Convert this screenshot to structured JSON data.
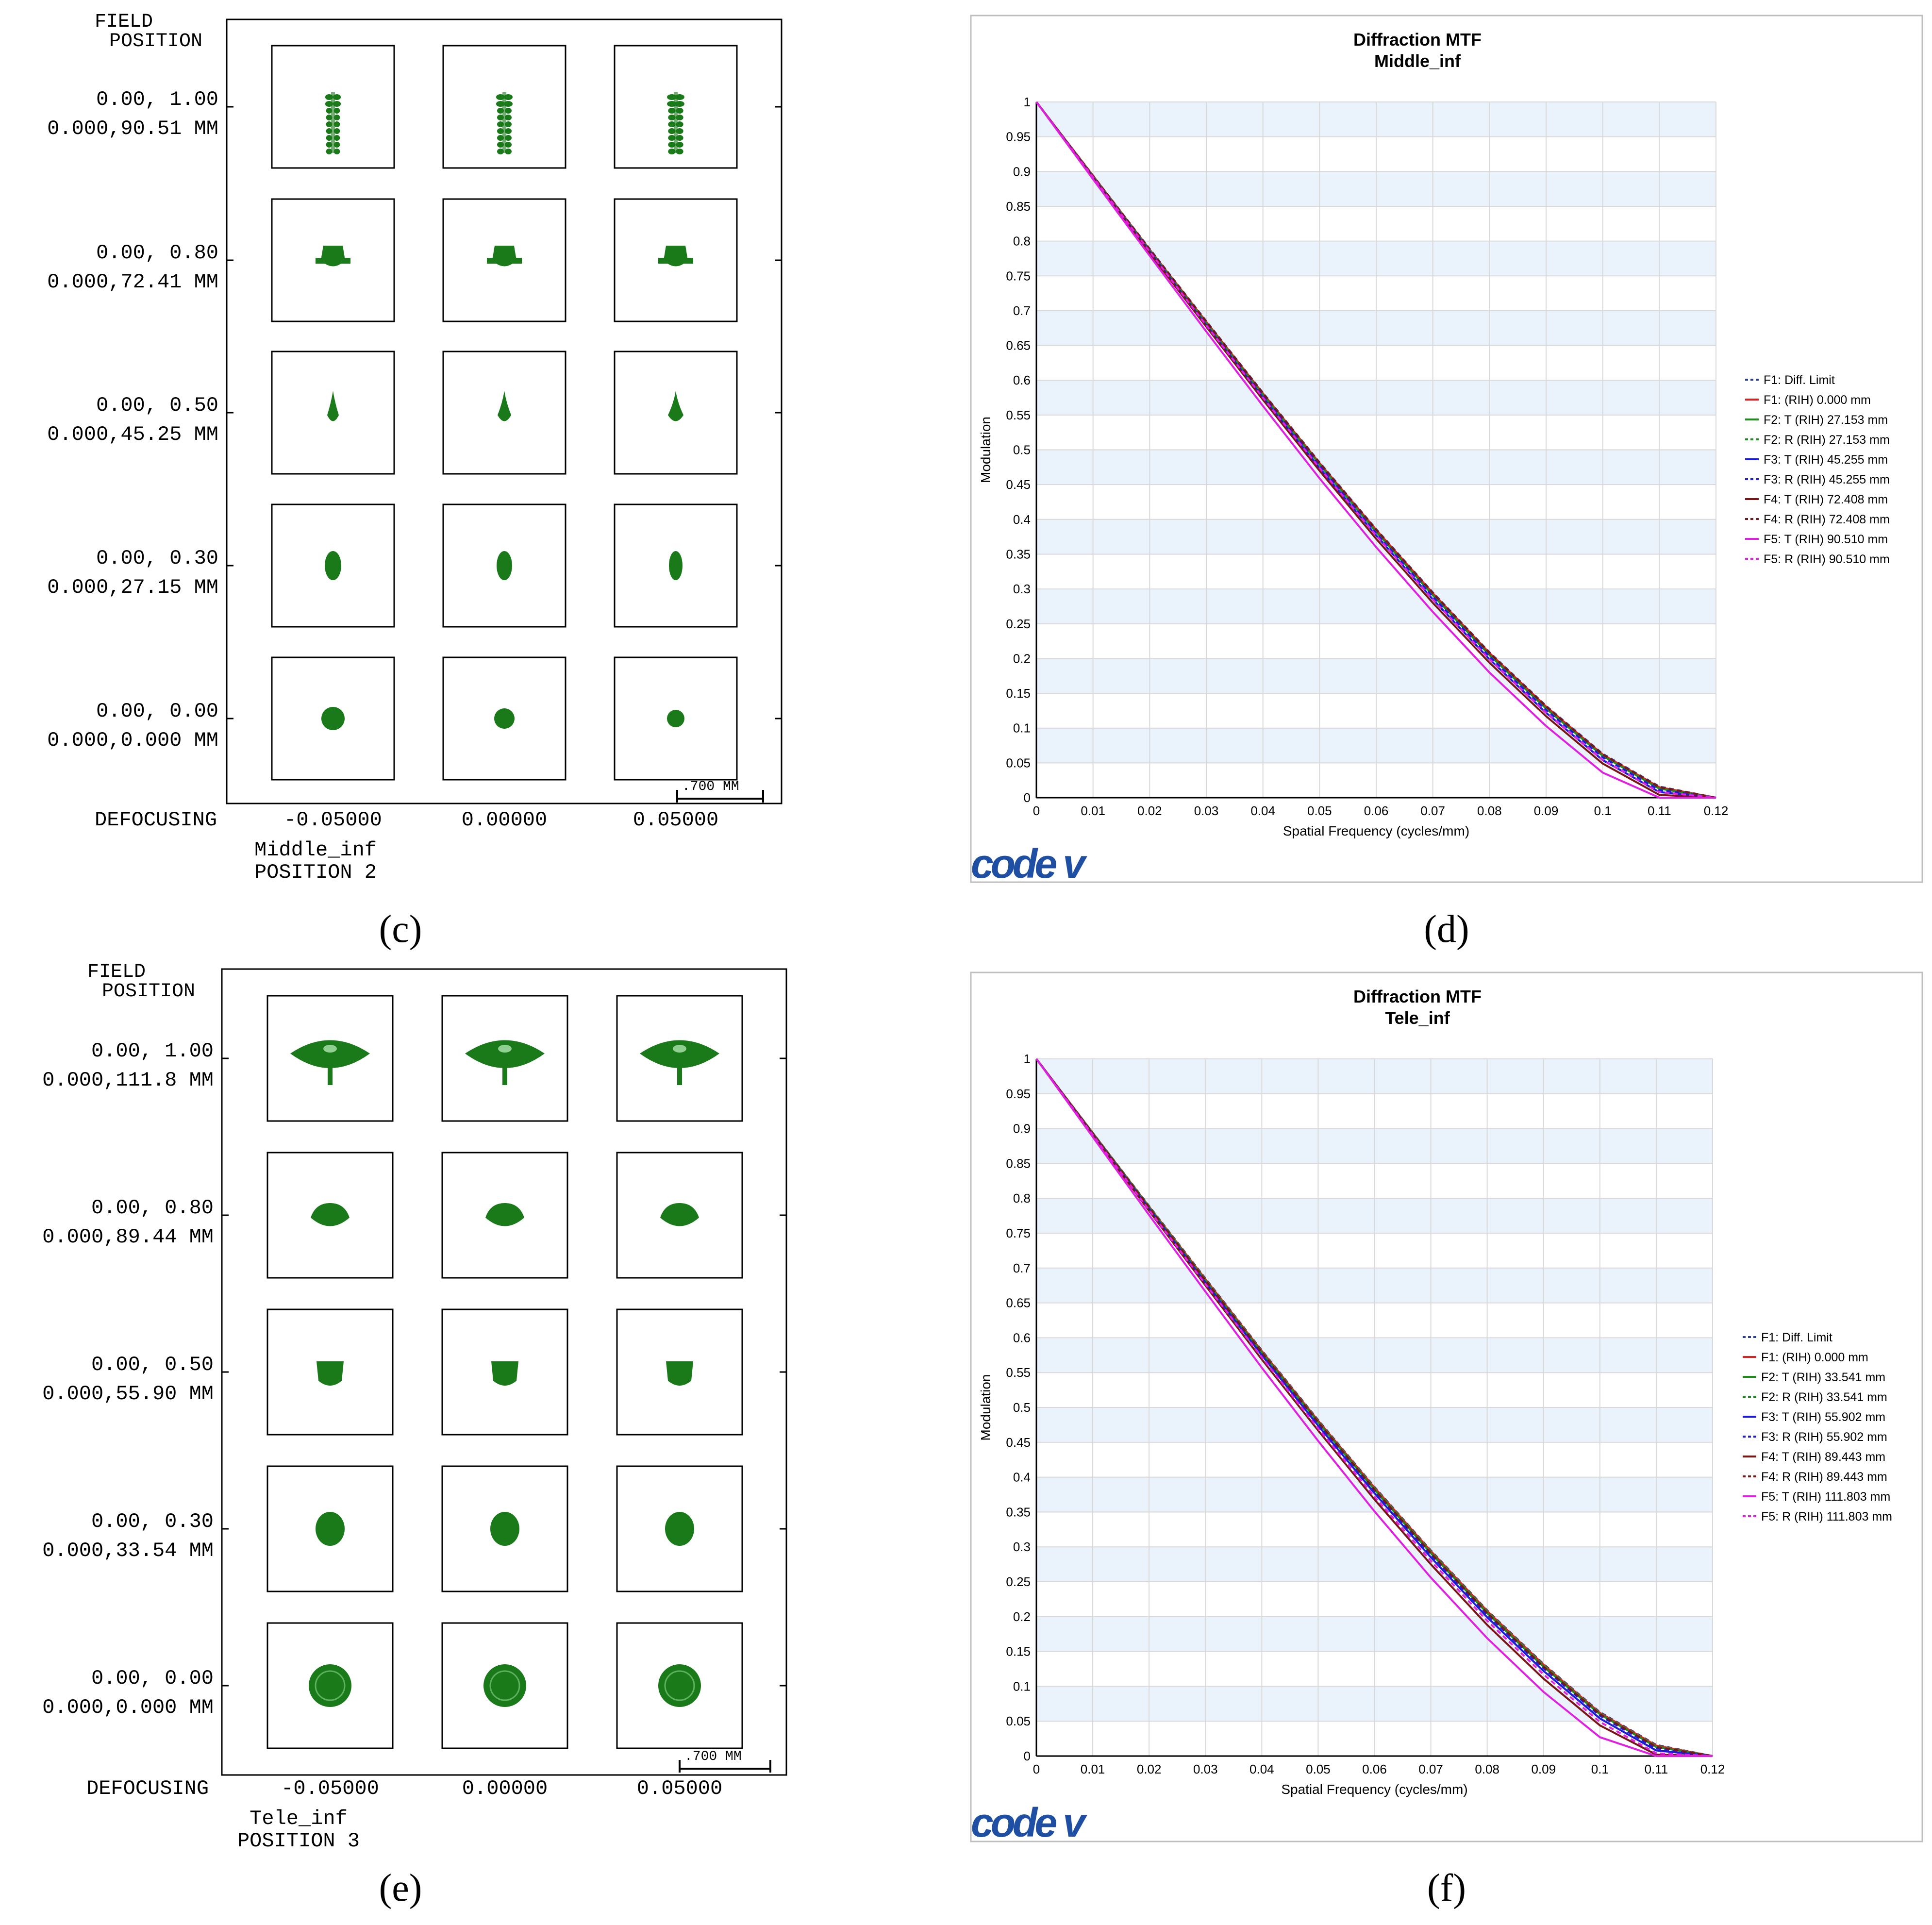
{
  "panels": {
    "c": {
      "caption": "(c)",
      "header": [
        "FIELD",
        "POSITION"
      ],
      "rows": [
        {
          "l1": "0.00, 1.00",
          "l2": "0.000,90.51 MM"
        },
        {
          "l1": "0.00, 0.80",
          "l2": "0.000,72.41 MM"
        },
        {
          "l1": "0.00, 0.50",
          "l2": "0.000,45.25 MM"
        },
        {
          "l1": "0.00, 0.30",
          "l2": "0.000,27.15 MM"
        },
        {
          "l1": "0.00, 0.00",
          "l2": "0.000,0.000 MM"
        }
      ],
      "defocus_label": "DEFOCUSING",
      "defocus": [
        "-0.05000",
        "0.00000",
        "0.05000"
      ],
      "scale_label": ".700  MM",
      "config": "Middle_inf",
      "position": "POSITION 2"
    },
    "e": {
      "caption": "(e)",
      "header": [
        "FIELD",
        "POSITION"
      ],
      "rows": [
        {
          "l1": "0.00, 1.00",
          "l2": "0.000,111.8 MM"
        },
        {
          "l1": "0.00, 0.80",
          "l2": "0.000,89.44 MM"
        },
        {
          "l1": "0.00, 0.50",
          "l2": "0.000,55.90 MM"
        },
        {
          "l1": "0.00, 0.30",
          "l2": "0.000,33.54 MM"
        },
        {
          "l1": "0.00, 0.00",
          "l2": "0.000,0.000 MM"
        }
      ],
      "defocus_label": "DEFOCUSING",
      "defocus": [
        "-0.05000",
        "0.00000",
        "0.05000"
      ],
      "scale_label": ".700  MM",
      "config": "Tele_inf",
      "position": "POSITION 3"
    },
    "d": {
      "caption": "(d)",
      "logo": "code v"
    },
    "f": {
      "caption": "(f)",
      "logo": "code v"
    }
  },
  "spot_color": "#1a7a1a",
  "chart_data": [
    {
      "id": "d",
      "type": "line",
      "title": "Diffraction MTF",
      "subtitle": "Middle_inf",
      "xlabel": "Spatial Frequency (cycles/mm)",
      "ylabel": "Modulation",
      "xlim": [
        0,
        0.12
      ],
      "ylim": [
        0,
        1
      ],
      "xticks": [
        "0",
        "0.01",
        "0.02",
        "0.03",
        "0.04",
        "0.05",
        "0.06",
        "0.07",
        "0.08",
        "0.09",
        "0.1",
        "0.11",
        "0.12"
      ],
      "yticks": [
        "0",
        "0.05",
        "0.1",
        "0.15",
        "0.2",
        "0.25",
        "0.3",
        "0.35",
        "0.4",
        "0.45",
        "0.5",
        "0.55",
        "0.6",
        "0.65",
        "0.7",
        "0.75",
        "0.8",
        "0.85",
        "0.9",
        "0.95",
        "1"
      ],
      "x": [
        0,
        0.01,
        0.02,
        0.03,
        0.04,
        0.05,
        0.06,
        0.07,
        0.08,
        0.09,
        0.1,
        0.11,
        0.12
      ],
      "series": [
        {
          "name": "F1: Diff. Limit",
          "color": "#2a3d8f",
          "dash": true,
          "values": [
            1,
            0.894,
            0.789,
            0.685,
            0.582,
            0.482,
            0.386,
            0.295,
            0.209,
            0.132,
            0.063,
            0.016,
            0
          ]
        },
        {
          "name": "F1: (RIH) 0.000 mm",
          "color": "#e02020",
          "dash": false,
          "values": [
            1,
            0.894,
            0.788,
            0.684,
            0.581,
            0.481,
            0.385,
            0.294,
            0.208,
            0.131,
            0.062,
            0.015,
            0
          ]
        },
        {
          "name": "F2: T (RIH) 27.153 mm",
          "color": "#1e8c1e",
          "dash": false,
          "values": [
            1,
            0.893,
            0.787,
            0.682,
            0.579,
            0.479,
            0.382,
            0.291,
            0.205,
            0.128,
            0.06,
            0.013,
            0
          ]
        },
        {
          "name": "F2: R (RIH) 27.153 mm",
          "color": "#1e8c1e",
          "dash": true,
          "values": [
            1,
            0.894,
            0.788,
            0.683,
            0.58,
            0.48,
            0.384,
            0.293,
            0.207,
            0.13,
            0.061,
            0.014,
            0
          ]
        },
        {
          "name": "F3: T (RIH) 45.255 mm",
          "color": "#1c1cd6",
          "dash": false,
          "values": [
            1,
            0.892,
            0.785,
            0.679,
            0.575,
            0.474,
            0.377,
            0.285,
            0.199,
            0.122,
            0.054,
            0.008,
            0
          ]
        },
        {
          "name": "F3: R (RIH) 45.255 mm",
          "color": "#1c1cd6",
          "dash": true,
          "values": [
            1,
            0.893,
            0.786,
            0.681,
            0.577,
            0.477,
            0.38,
            0.289,
            0.203,
            0.126,
            0.058,
            0.011,
            0
          ]
        },
        {
          "name": "F4: T (RIH) 72.408 mm",
          "color": "#7a1515",
          "dash": false,
          "values": [
            1,
            0.891,
            0.783,
            0.677,
            0.572,
            0.47,
            0.372,
            0.28,
            0.194,
            0.117,
            0.049,
            0.004,
            0
          ]
        },
        {
          "name": "F4: R (RIH) 72.408 mm",
          "color": "#7a1515",
          "dash": true,
          "values": [
            1,
            0.894,
            0.788,
            0.684,
            0.581,
            0.481,
            0.385,
            0.294,
            0.208,
            0.131,
            0.062,
            0.015,
            0
          ]
        },
        {
          "name": "F5: T (RIH) 90.510 mm",
          "color": "#e020e0",
          "dash": false,
          "values": [
            1,
            0.889,
            0.779,
            0.67,
            0.563,
            0.459,
            0.36,
            0.267,
            0.18,
            0.103,
            0.036,
            0,
            0
          ]
        },
        {
          "name": "F5: R (RIH) 90.510 mm",
          "color": "#e020e0",
          "dash": true,
          "values": [
            1,
            0.892,
            0.785,
            0.679,
            0.575,
            0.474,
            0.377,
            0.285,
            0.199,
            0.122,
            0.054,
            0.008,
            0
          ]
        }
      ]
    },
    {
      "id": "f",
      "type": "line",
      "title": "Diffraction MTF",
      "subtitle": "Tele_inf",
      "xlabel": "Spatial Frequency (cycles/mm)",
      "ylabel": "Modulation",
      "xlim": [
        0,
        0.12
      ],
      "ylim": [
        0,
        1
      ],
      "xticks": [
        "0",
        "0.01",
        "0.02",
        "0.03",
        "0.04",
        "0.05",
        "0.06",
        "0.07",
        "0.08",
        "0.09",
        "0.1",
        "0.11",
        "0.12"
      ],
      "yticks": [
        "0",
        "0.05",
        "0.1",
        "0.15",
        "0.2",
        "0.25",
        "0.3",
        "0.35",
        "0.4",
        "0.45",
        "0.5",
        "0.55",
        "0.6",
        "0.65",
        "0.7",
        "0.75",
        "0.8",
        "0.85",
        "0.9",
        "0.95",
        "1"
      ],
      "x": [
        0,
        0.01,
        0.02,
        0.03,
        0.04,
        0.05,
        0.06,
        0.07,
        0.08,
        0.09,
        0.1,
        0.11,
        0.12
      ],
      "series": [
        {
          "name": "F1: Diff. Limit",
          "color": "#2a3d8f",
          "dash": true,
          "values": [
            1,
            0.894,
            0.789,
            0.685,
            0.582,
            0.482,
            0.386,
            0.295,
            0.209,
            0.132,
            0.063,
            0.016,
            0
          ]
        },
        {
          "name": "F1: (RIH) 0.000 mm",
          "color": "#e02020",
          "dash": false,
          "values": [
            1,
            0.894,
            0.788,
            0.684,
            0.581,
            0.481,
            0.385,
            0.294,
            0.208,
            0.131,
            0.062,
            0.015,
            0
          ]
        },
        {
          "name": "F2: T (RIH) 33.541 mm",
          "color": "#1e8c1e",
          "dash": false,
          "values": [
            1,
            0.893,
            0.787,
            0.682,
            0.579,
            0.479,
            0.382,
            0.291,
            0.205,
            0.128,
            0.06,
            0.013,
            0
          ]
        },
        {
          "name": "F2: R (RIH) 33.541 mm",
          "color": "#1e8c1e",
          "dash": true,
          "values": [
            1,
            0.894,
            0.788,
            0.683,
            0.58,
            0.48,
            0.384,
            0.293,
            0.207,
            0.13,
            0.061,
            0.014,
            0
          ]
        },
        {
          "name": "F3: T (RIH) 55.902 mm",
          "color": "#1c1cd6",
          "dash": false,
          "values": [
            1,
            0.892,
            0.785,
            0.679,
            0.575,
            0.474,
            0.377,
            0.285,
            0.199,
            0.122,
            0.054,
            0.008,
            0
          ]
        },
        {
          "name": "F3: R (RIH) 55.902 mm",
          "color": "#1c1cd6",
          "dash": true,
          "values": [
            1,
            0.893,
            0.786,
            0.681,
            0.577,
            0.477,
            0.38,
            0.289,
            0.203,
            0.126,
            0.058,
            0.011,
            0
          ]
        },
        {
          "name": "F4: T (RIH) 89.443 mm",
          "color": "#7a1515",
          "dash": false,
          "values": [
            1,
            0.891,
            0.782,
            0.675,
            0.569,
            0.467,
            0.368,
            0.275,
            0.188,
            0.111,
            0.044,
            0.002,
            0
          ]
        },
        {
          "name": "F4: R (RIH) 89.443 mm",
          "color": "#7a1515",
          "dash": true,
          "values": [
            1,
            0.893,
            0.787,
            0.682,
            0.579,
            0.479,
            0.382,
            0.291,
            0.205,
            0.128,
            0.06,
            0.013,
            0
          ]
        },
        {
          "name": "F5: T (RIH) 111.803 mm",
          "color": "#e020e0",
          "dash": false,
          "values": [
            1,
            0.888,
            0.776,
            0.666,
            0.557,
            0.452,
            0.351,
            0.256,
            0.169,
            0.092,
            0.027,
            0,
            0
          ]
        },
        {
          "name": "F5: R (RIH) 111.803 mm",
          "color": "#e020e0",
          "dash": true,
          "values": [
            1,
            0.891,
            0.783,
            0.677,
            0.572,
            0.47,
            0.372,
            0.28,
            0.194,
            0.117,
            0.049,
            0.004,
            0
          ]
        }
      ]
    }
  ]
}
